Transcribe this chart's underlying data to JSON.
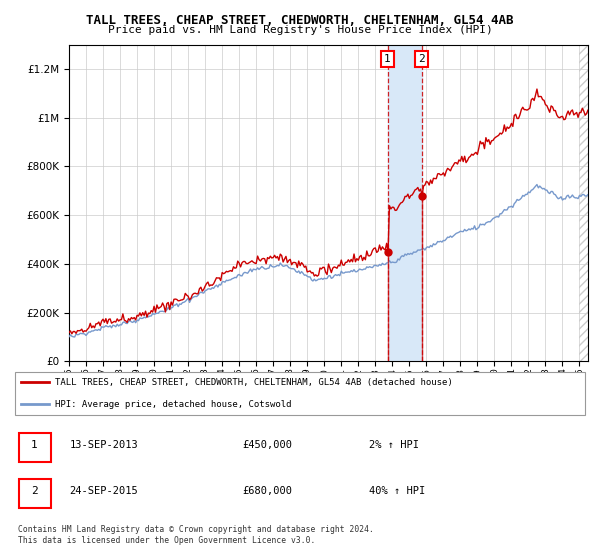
{
  "title": "TALL TREES, CHEAP STREET, CHEDWORTH, CHELTENHAM, GL54 4AB",
  "subtitle": "Price paid vs. HM Land Registry's House Price Index (HPI)",
  "ylim": [
    0,
    1300000
  ],
  "yticks": [
    0,
    200000,
    400000,
    600000,
    800000,
    1000000,
    1200000
  ],
  "red_line_color": "#cc0000",
  "blue_line_color": "#7799cc",
  "shaded_color": "#d8e8f8",
  "purchase1_year": 2013.72,
  "purchase2_year": 2015.72,
  "purchase1_price": 450000,
  "purchase2_price": 680000,
  "legend_red": "TALL TREES, CHEAP STREET, CHEDWORTH, CHELTENHAM, GL54 4AB (detached house)",
  "legend_blue": "HPI: Average price, detached house, Cotswold",
  "annotation1_label": "1",
  "annotation2_label": "2",
  "table_row1": [
    "1",
    "13-SEP-2013",
    "£450,000",
    "2% ↑ HPI"
  ],
  "table_row2": [
    "2",
    "24-SEP-2015",
    "£680,000",
    "40% ↑ HPI"
  ],
  "footer": "Contains HM Land Registry data © Crown copyright and database right 2024.\nThis data is licensed under the Open Government Licence v3.0.",
  "background_color": "#ffffff",
  "grid_color": "#cccccc"
}
